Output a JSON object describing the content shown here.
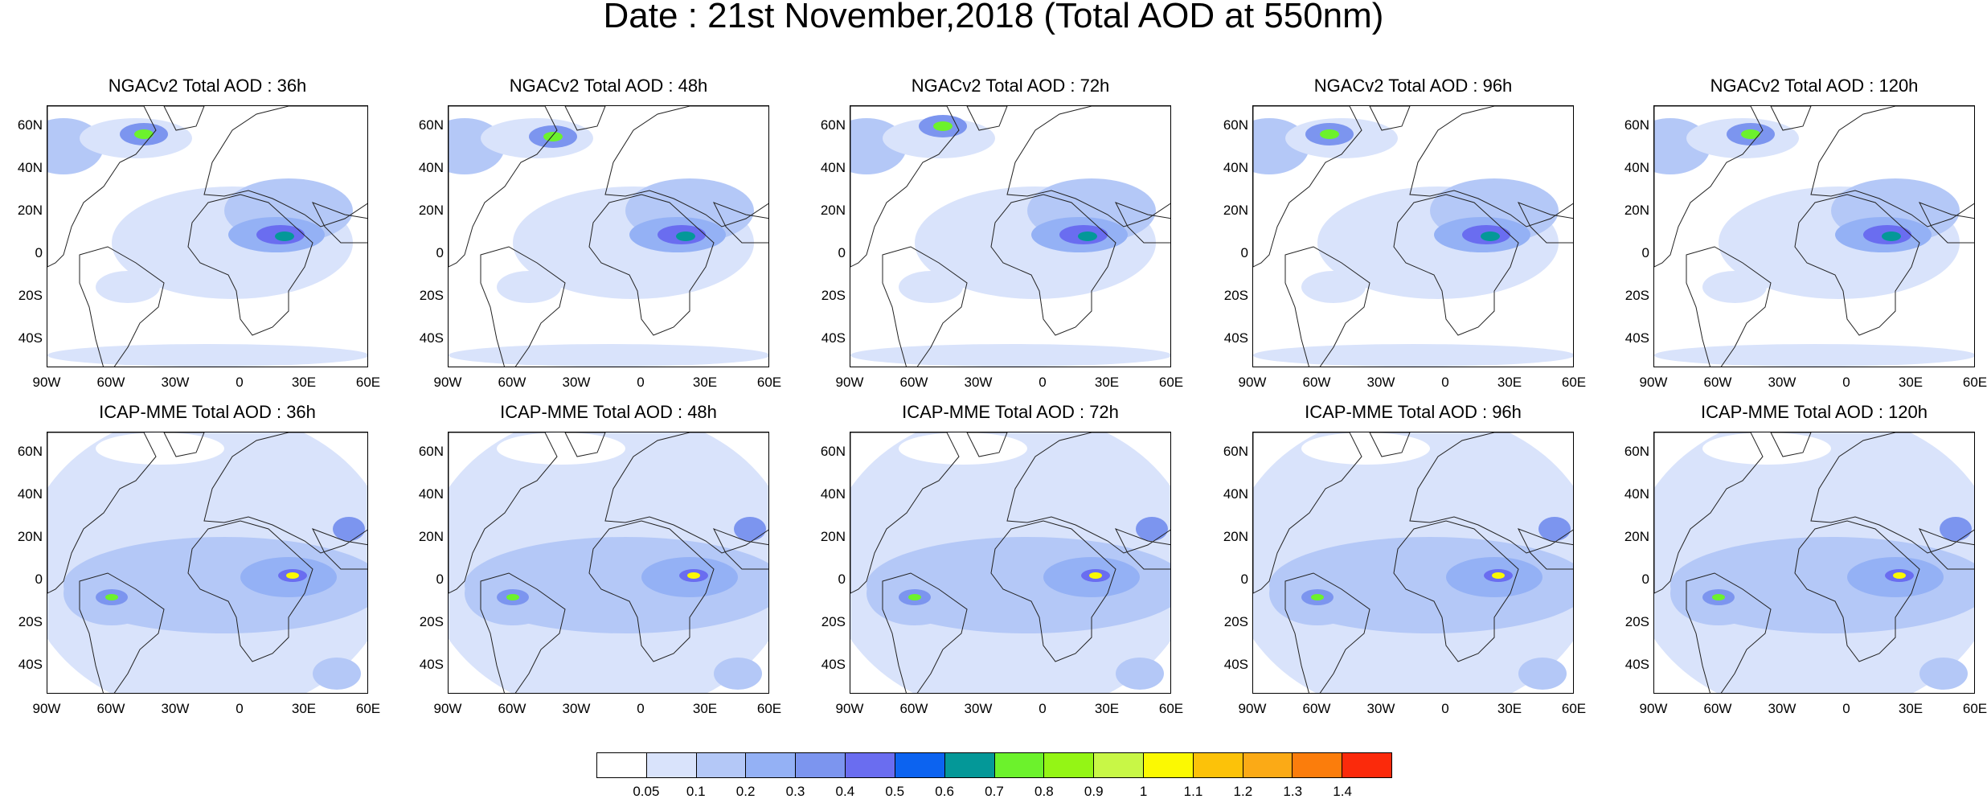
{
  "title": "Date : 21st November,2018 (Total AOD at 550nm)",
  "latitude_ticks": [
    "60N",
    "40N",
    "20N",
    "0",
    "20S",
    "40S"
  ],
  "longitude_ticks": [
    "90W",
    "60W",
    "30W",
    "0",
    "30E",
    "60E"
  ],
  "rows": [
    {
      "model": "NGACv2",
      "panels": [
        {
          "title": "NGACv2 Total AOD : 36h"
        },
        {
          "title": "NGACv2 Total AOD : 48h"
        },
        {
          "title": "NGACv2 Total AOD : 72h"
        },
        {
          "title": "NGACv2 Total AOD : 96h"
        },
        {
          "title": "NGACv2 Total AOD : 120h"
        }
      ]
    },
    {
      "model": "ICAP-MME",
      "panels": [
        {
          "title": "ICAP-MME Total AOD : 36h"
        },
        {
          "title": "ICAP-MME Total AOD : 48h"
        },
        {
          "title": "ICAP-MME Total AOD : 72h"
        },
        {
          "title": "ICAP-MME Total AOD : 96h"
        },
        {
          "title": "ICAP-MME Total AOD : 120h"
        }
      ]
    }
  ],
  "colorbar": {
    "colors": [
      "#ffffff",
      "#d9e3fb",
      "#b4c8f7",
      "#94b1f5",
      "#7c95ef",
      "#6a6df0",
      "#0c63f0",
      "#049898",
      "#6cf22c",
      "#94f515",
      "#c8f746",
      "#fbf902",
      "#fcc209",
      "#fbaa16",
      "#fb7d0c",
      "#fb2a0b"
    ],
    "labels": [
      "0.05",
      "0.1",
      "0.2",
      "0.3",
      "0.4",
      "0.5",
      "0.6",
      "0.7",
      "0.8",
      "0.9",
      "1",
      "1.1",
      "1.2",
      "1.3",
      "1.4"
    ]
  }
}
